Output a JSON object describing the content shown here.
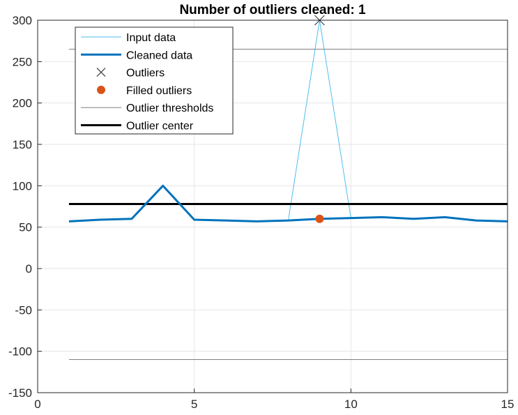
{
  "chart_data": {
    "type": "line",
    "title": "Number of outliers cleaned: 1",
    "xlabel": "",
    "ylabel": "",
    "xlim": [
      0,
      15
    ],
    "ylim": [
      -150,
      300
    ],
    "xticks": [
      0,
      5,
      10,
      15
    ],
    "yticks": [
      -150,
      -100,
      -50,
      0,
      50,
      100,
      150,
      200,
      250,
      300
    ],
    "grid": true,
    "legend_position": "top-left",
    "x": [
      1,
      2,
      3,
      4,
      5,
      6,
      7,
      8,
      9,
      10,
      11,
      12,
      13,
      14,
      15
    ],
    "series": [
      {
        "name": "Input data",
        "color": "#4DBEEE",
        "values": [
          57,
          59,
          60,
          100,
          59,
          58,
          57,
          58,
          300,
          61,
          62,
          60,
          62,
          58,
          57
        ]
      },
      {
        "name": "Cleaned data",
        "color": "#0072BD",
        "values": [
          57,
          59,
          60,
          100,
          59,
          58,
          57,
          58,
          60,
          61,
          62,
          60,
          62,
          58,
          57
        ]
      },
      {
        "name": "Outliers",
        "color": "#404040",
        "points": [
          {
            "x": 9,
            "y": 300
          }
        ]
      },
      {
        "name": "Filled outliers",
        "color": "#D95319",
        "points": [
          {
            "x": 9,
            "y": 60
          }
        ]
      },
      {
        "name": "Outlier thresholds",
        "color": "#808080",
        "lower": -110,
        "upper": 265
      },
      {
        "name": "Outlier center",
        "color": "#000000",
        "value": 78
      }
    ]
  }
}
